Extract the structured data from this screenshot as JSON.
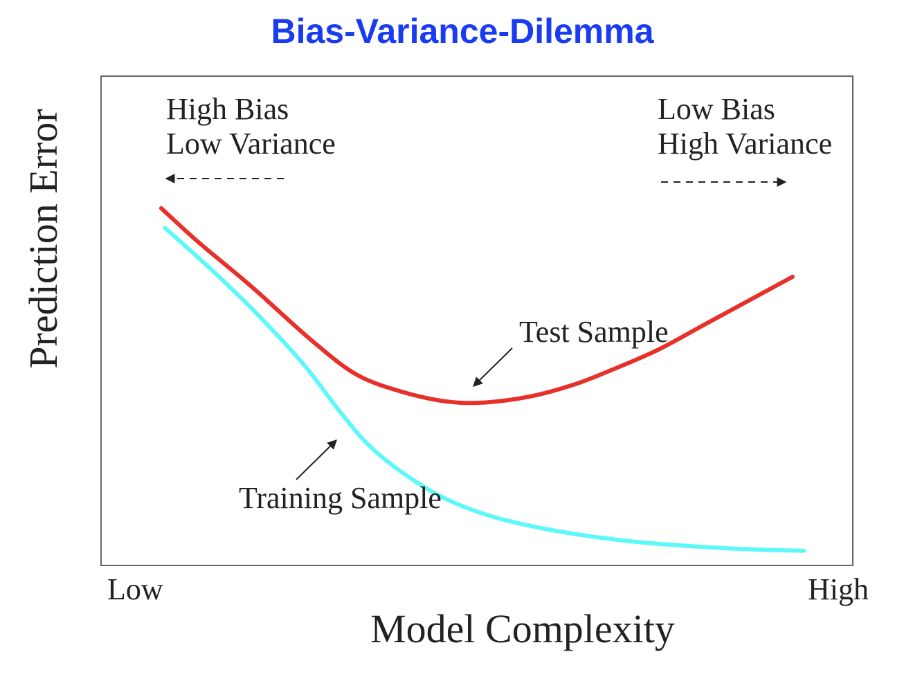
{
  "colors": {
    "title": "#1a3cf0",
    "test_series": "#e8302a",
    "training_series": "#5ef8fb",
    "frame": "#666666",
    "text": "#222222"
  },
  "chart_data": {
    "type": "line",
    "title": "Bias-Variance-Dilemma",
    "xlabel": "Model Complexity",
    "ylabel": "Prediction Error",
    "xlim": [
      0,
      1
    ],
    "ylim": [
      0,
      1
    ],
    "x_tick_labels": [
      "Low",
      "High"
    ],
    "grid": false,
    "annotations": {
      "left_line1": "High Bias",
      "left_line2": "Low Variance",
      "right_line1": "Low Bias",
      "right_line2": "High Variance",
      "test_label": "Test Sample",
      "training_label": "Training Sample"
    },
    "series": [
      {
        "key": "test",
        "label": "Test Sample",
        "color": "#e8302a",
        "x": [
          0.08,
          0.13,
          0.2,
          0.28,
          0.34,
          0.4,
          0.46,
          0.51,
          0.57,
          0.63,
          0.68,
          0.74,
          0.8,
          0.86,
          0.92
        ],
        "y": [
          0.73,
          0.66,
          0.57,
          0.46,
          0.39,
          0.355,
          0.335,
          0.333,
          0.345,
          0.37,
          0.4,
          0.44,
          0.49,
          0.54,
          0.59
        ]
      },
      {
        "key": "training",
        "label": "Training Sample",
        "color": "#5ef8fb",
        "x": [
          0.085,
          0.15,
          0.21,
          0.27,
          0.32,
          0.36,
          0.41,
          0.46,
          0.52,
          0.58,
          0.64,
          0.7,
          0.76,
          0.82,
          0.88,
          0.935
        ],
        "y": [
          0.69,
          0.6,
          0.51,
          0.41,
          0.31,
          0.24,
          0.18,
          0.135,
          0.1,
          0.078,
          0.062,
          0.05,
          0.042,
          0.036,
          0.032,
          0.03
        ]
      }
    ]
  }
}
